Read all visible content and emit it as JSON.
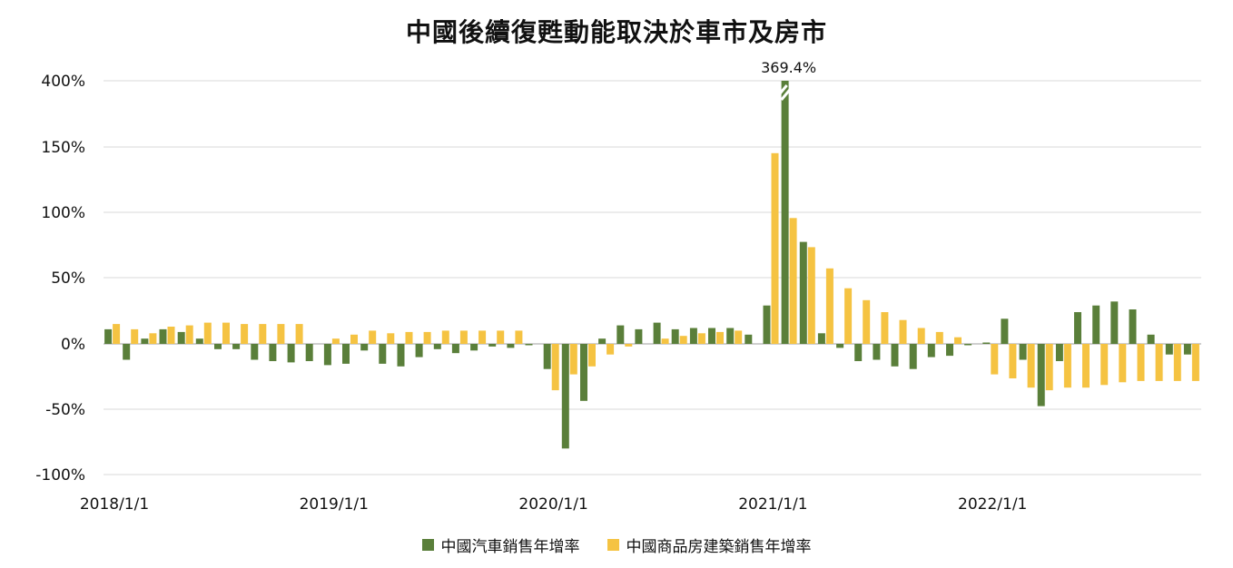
{
  "colors": {
    "car": "#5A7F3A",
    "property": "#F5C342",
    "grid": "#D9D9D9",
    "axis": "#BFBFBF"
  },
  "chart_data": {
    "type": "bar",
    "title": "中國後續復甦動能取決於車市及房市",
    "y_tick_labels": [
      "400%",
      "150%",
      "100%",
      "50%",
      "0%",
      "-50%",
      "-100%"
    ],
    "y_tick_values": [
      400,
      150,
      100,
      50,
      0,
      -50,
      -100
    ],
    "x_tick_labels": [
      "2018/1/1",
      "2019/1/1",
      "2020/1/1",
      "2021/1/1",
      "2022/1/1"
    ],
    "x_tick_indices": [
      0,
      12,
      24,
      36,
      48
    ],
    "axis_break": {
      "value_label": "369.4%",
      "series": "中國汽車銷售年增率",
      "index": 37
    },
    "grid": true,
    "legend_position": "bottom",
    "series": [
      {
        "name": "中國汽車銷售年增率",
        "values": [
          11,
          -12,
          4,
          11,
          9,
          4,
          -4,
          -4,
          -12,
          -13,
          -14,
          -13,
          -16,
          -15,
          -5,
          -15,
          -17,
          -10,
          -4,
          -7,
          -5,
          -2,
          -3,
          -1,
          -19,
          -79,
          -43,
          4,
          14,
          11,
          16,
          11,
          12,
          12,
          12,
          7,
          29,
          369.4,
          77,
          8,
          -3,
          -13,
          -12,
          -17,
          -19,
          -10,
          -9,
          -1,
          1,
          19,
          -12,
          -47,
          -13,
          24,
          29,
          32,
          26,
          7,
          -8,
          -8
        ],
        "null_indices": []
      },
      {
        "name": "中國商品房建築銷售年增率",
        "values": [
          15,
          11,
          8,
          13,
          14,
          16,
          16,
          15,
          15,
          15,
          15,
          null,
          4,
          7,
          10,
          8,
          9,
          9,
          10,
          10,
          10,
          10,
          10,
          null,
          -35,
          -23,
          -17,
          -8,
          -2,
          null,
          4,
          6,
          8,
          9,
          10,
          null,
          144,
          95,
          73,
          57,
          42,
          33,
          24,
          18,
          12,
          9,
          5,
          null,
          -23,
          -26,
          -33,
          -35,
          -33,
          -33,
          -31,
          -29,
          -28,
          -28,
          -28,
          -28
        ]
      }
    ]
  }
}
